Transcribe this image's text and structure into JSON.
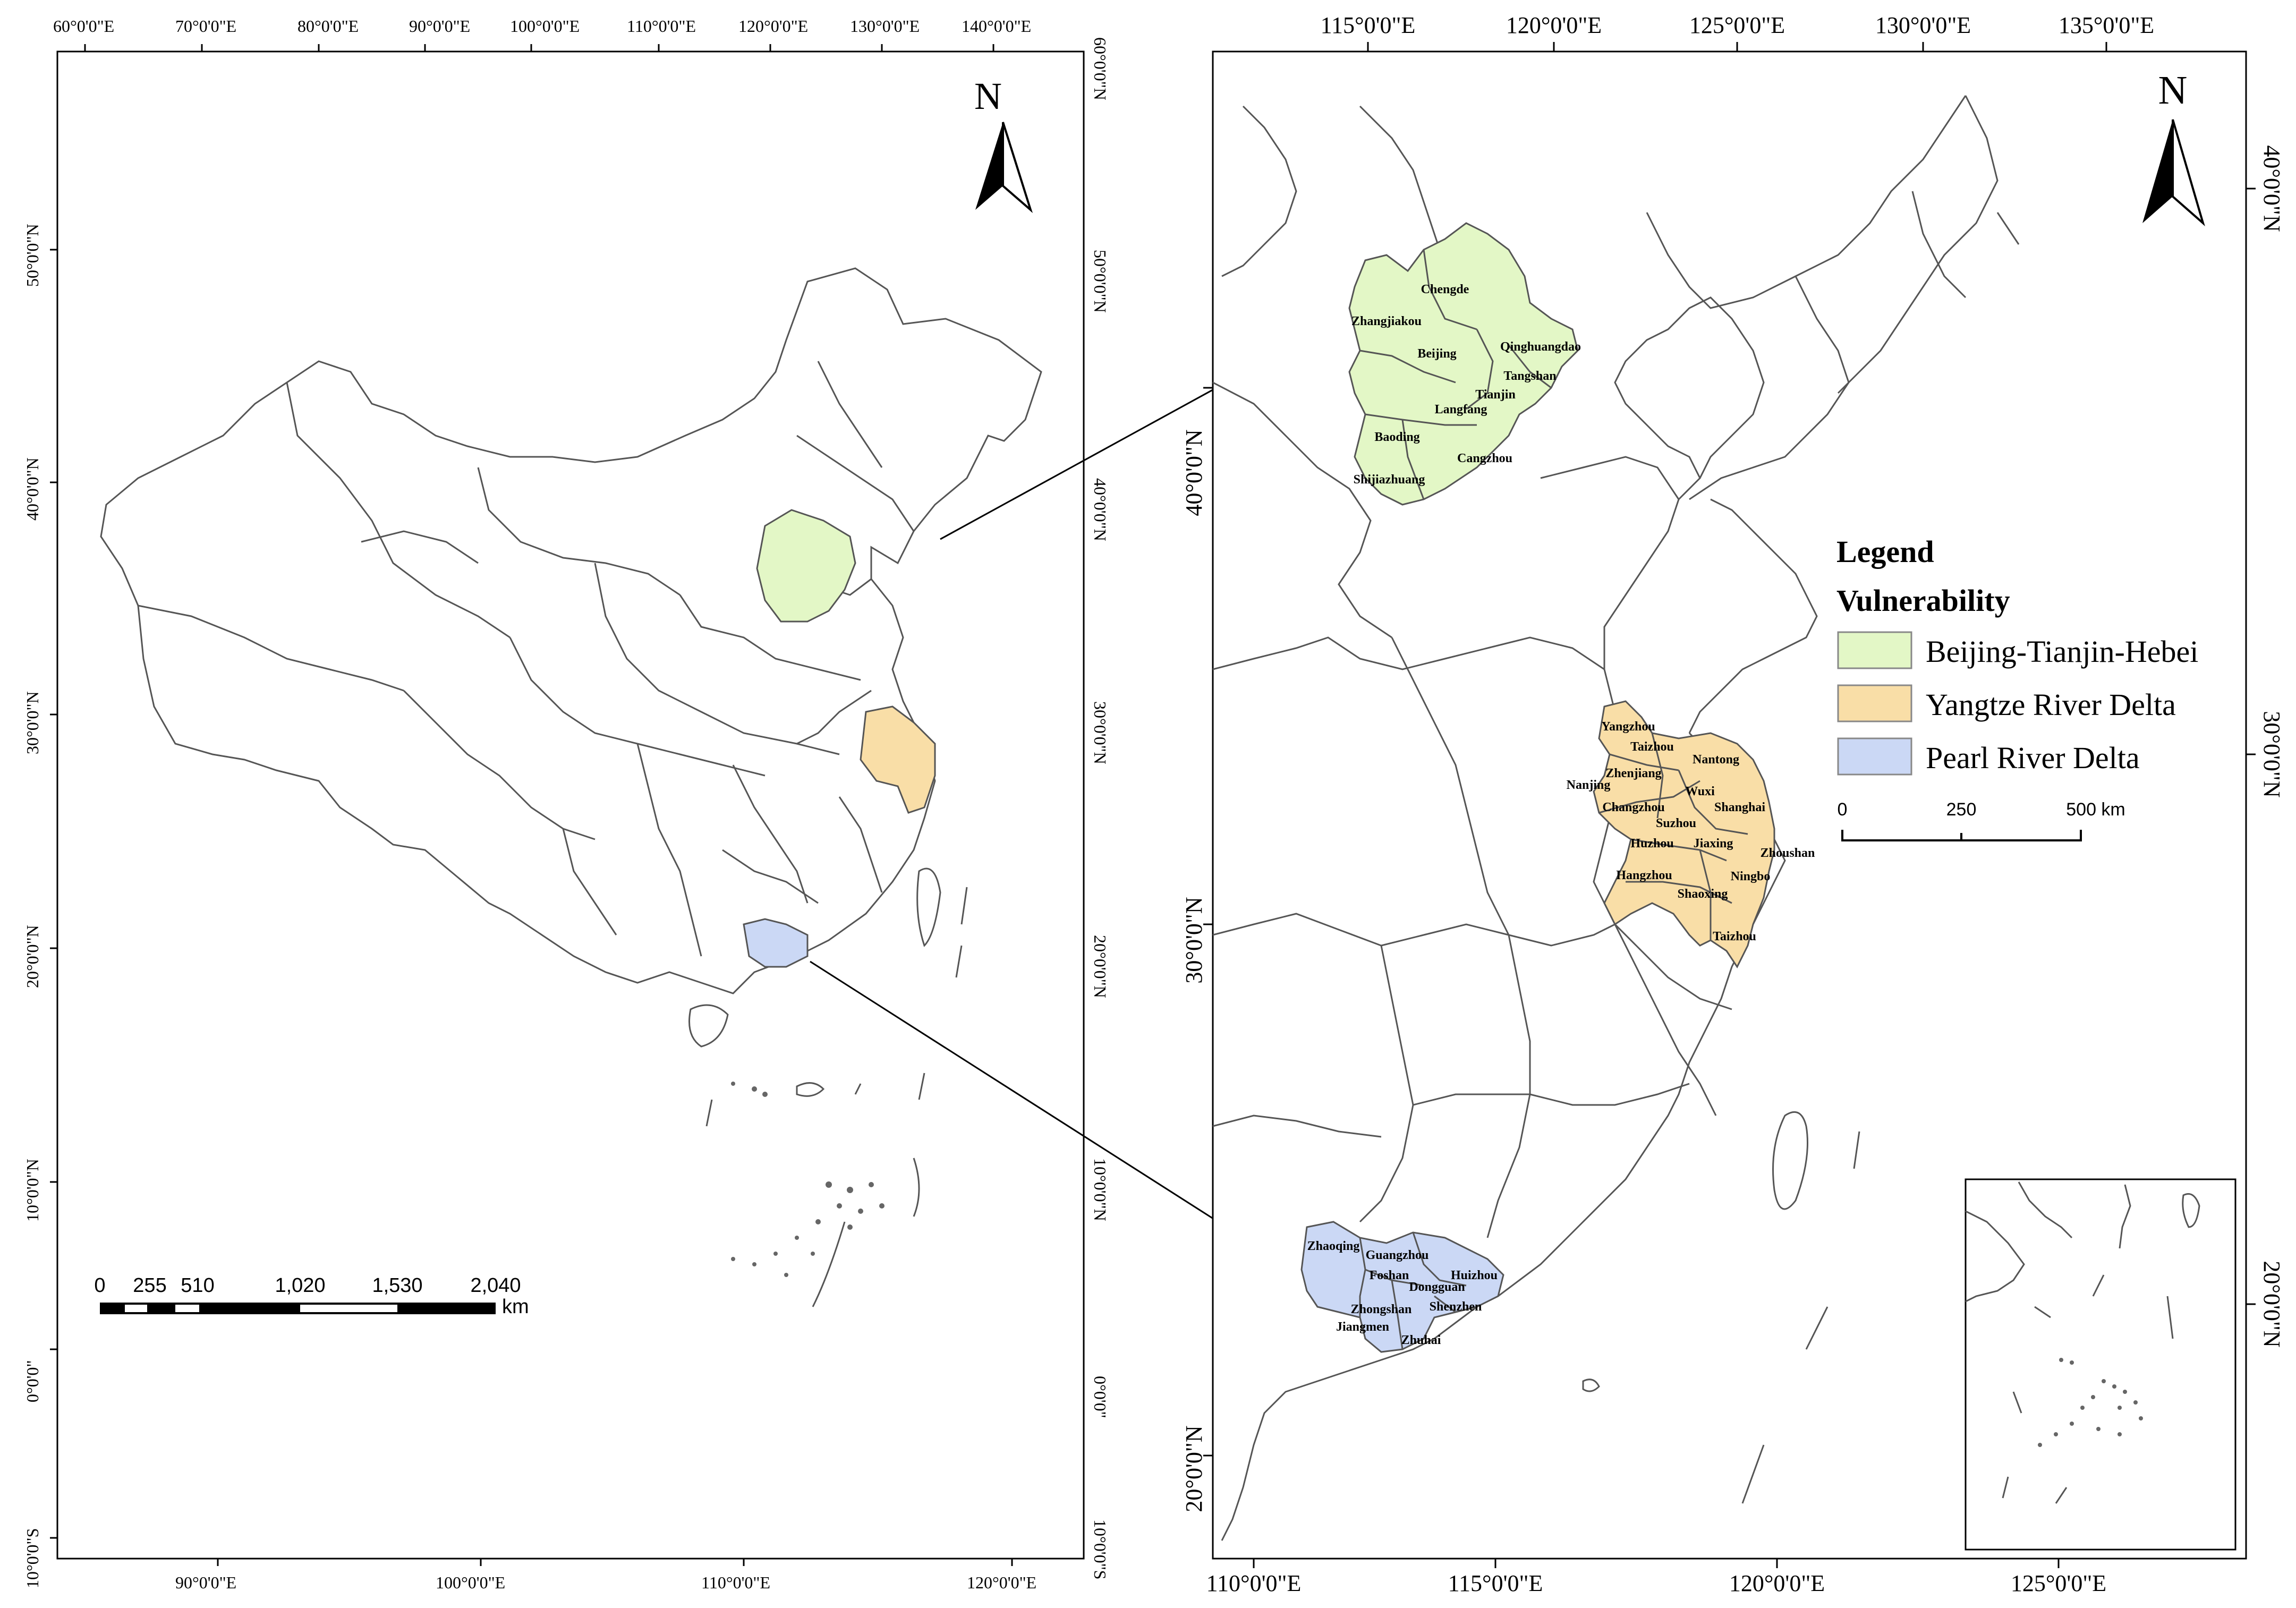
{
  "colors": {
    "bth": "#e3f7c6",
    "yrd": "#f9dea7",
    "prd": "#cbd8f5",
    "boundary": "#555555",
    "frame": "#000000"
  },
  "left_map": {
    "north_label": "N",
    "top_ticks": [
      "60°0'0\"E",
      "70°0'0\"E",
      "80°0'0\"E",
      "90°0'0\"E",
      "100°0'0\"E",
      "110°0'0\"E",
      "120°0'0\"E",
      "130°0'0\"E",
      "140°0'0\"E"
    ],
    "bottom_ticks": [
      "90°0'0\"E",
      "100°0'0\"E",
      "110°0'0\"E",
      "120°0'0\"E"
    ],
    "left_ticks": [
      "50°0'0\"N",
      "40°0'0\"N",
      "30°0'0\"N",
      "20°0'0\"N",
      "10°0'0\"N",
      "0°0'0\"",
      "10°0'0\"S"
    ],
    "right_ticks": [
      "60°0'0\"N",
      "50°0'0\"N",
      "40°0'0\"N",
      "30°0'0\"N",
      "20°0'0\"N",
      "10°0'0\"N",
      "0°0'0\"",
      "10°0'0\"S"
    ],
    "scalebar": {
      "labels": [
        "0",
        "255",
        "510",
        "1,020",
        "1,530",
        "2,040"
      ],
      "unit": "km"
    }
  },
  "right_map": {
    "north_label": "N",
    "top_ticks": [
      "115°0'0\"E",
      "120°0'0\"E",
      "125°0'0\"E",
      "130°0'0\"E",
      "135°0'0\"E"
    ],
    "bottom_ticks": [
      "110°0'0\"E",
      "115°0'0\"E",
      "120°0'0\"E",
      "125°0'0\"E"
    ],
    "left_ticks": [
      "40°0'0\"N",
      "30°0'0\"N",
      "20°0'0\"N"
    ],
    "right_ticks": [
      "40°0'0\"N",
      "30°0'0\"N",
      "20°0'0\"N"
    ],
    "bth_cities": [
      "Chengde",
      "Zhangjiakou",
      "Beijing",
      "Qinghuangdao",
      "Tangshan",
      "Tianjin",
      "Langfang",
      "Baoding",
      "Cangzhou",
      "Shijiazhuang"
    ],
    "yrd_cities": [
      "Yangzhou",
      "Taizhou",
      "Nantong",
      "Zhenjiang",
      "Nanjing",
      "Wuxi",
      "Changzhou",
      "Shanghai",
      "Suzhou",
      "Huzhou",
      "Jiaxing",
      "Zhoushan",
      "Hangzhou",
      "Ningbo",
      "Shaoxing",
      "Taizhou"
    ],
    "prd_cities": [
      "Zhaoqing",
      "Guangzhou",
      "Foshan",
      "Huizhou",
      "Dongguan",
      "Shenzhen",
      "Zhongshan",
      "Jiangmen",
      "Zhuhai"
    ]
  },
  "legend": {
    "title": "Legend",
    "subtitle": "Vulnerability",
    "items": [
      {
        "label": "Beijing-Tianjin-Hebei",
        "color": "#e3f7c6"
      },
      {
        "label": "Yangtze River Delta",
        "color": "#f9dea7"
      },
      {
        "label": "Pearl River Delta",
        "color": "#cbd8f5"
      }
    ],
    "scalebar": {
      "labels": [
        "0",
        "250",
        "500 km"
      ]
    }
  }
}
